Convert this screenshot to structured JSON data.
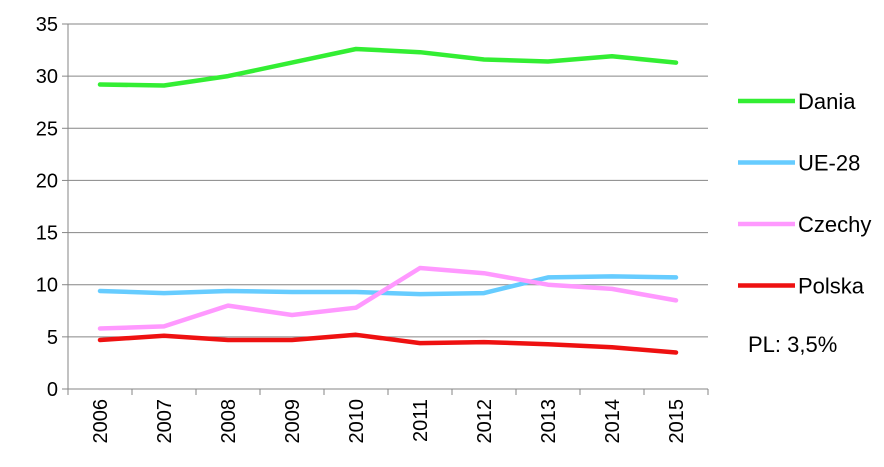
{
  "chart_data": {
    "type": "line",
    "x": [
      "2006",
      "2007",
      "2008",
      "2009",
      "2010",
      "2011",
      "2012",
      "2013",
      "2014",
      "2015"
    ],
    "ylim": [
      0,
      35
    ],
    "yticks": [
      "0",
      "5",
      "10",
      "15",
      "20",
      "25",
      "30",
      "35"
    ],
    "grid": true,
    "legend_position": "right",
    "series": [
      {
        "name": "Dania",
        "color": "#33ee33",
        "values": [
          29.2,
          29.1,
          30.0,
          31.3,
          32.6,
          32.3,
          31.6,
          31.4,
          31.9,
          31.3
        ]
      },
      {
        "name": "UE-28",
        "color": "#66ccff",
        "values": [
          9.4,
          9.2,
          9.4,
          9.3,
          9.3,
          9.1,
          9.2,
          10.7,
          10.8,
          10.7
        ]
      },
      {
        "name": "Czechy",
        "color": "#ff99ff",
        "values": [
          5.8,
          6.0,
          8.0,
          7.1,
          7.8,
          11.6,
          11.1,
          10.0,
          9.6,
          8.5
        ]
      },
      {
        "name": "Polska",
        "color": "#ee1111",
        "values": [
          4.7,
          5.1,
          4.7,
          4.7,
          5.2,
          4.4,
          4.5,
          4.3,
          4.0,
          3.5
        ]
      }
    ],
    "annotation": "PL: 3,5%"
  }
}
